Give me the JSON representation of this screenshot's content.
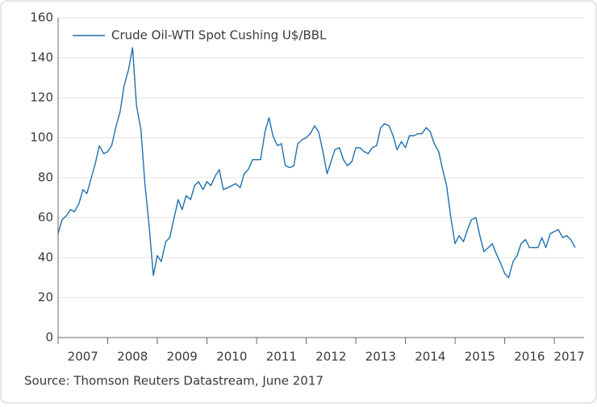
{
  "chart_data": {
    "type": "line",
    "source": "Source: Thomson Reuters Datastream, June 2017",
    "x": [
      2007.0,
      2007.08,
      2007.17,
      2007.25,
      2007.33,
      2007.42,
      2007.5,
      2007.58,
      2007.67,
      2007.75,
      2007.83,
      2007.92,
      2008.0,
      2008.08,
      2008.17,
      2008.25,
      2008.33,
      2008.42,
      2008.5,
      2008.58,
      2008.67,
      2008.75,
      2008.83,
      2008.92,
      2009.0,
      2009.08,
      2009.17,
      2009.25,
      2009.33,
      2009.42,
      2009.5,
      2009.58,
      2009.67,
      2009.75,
      2009.83,
      2009.92,
      2010.0,
      2010.08,
      2010.17,
      2010.25,
      2010.33,
      2010.42,
      2010.5,
      2010.58,
      2010.67,
      2010.75,
      2010.83,
      2010.92,
      2011.0,
      2011.08,
      2011.17,
      2011.25,
      2011.33,
      2011.42,
      2011.5,
      2011.58,
      2011.67,
      2011.75,
      2011.83,
      2011.92,
      2012.0,
      2012.08,
      2012.17,
      2012.25,
      2012.33,
      2012.42,
      2012.5,
      2012.58,
      2012.67,
      2012.75,
      2012.83,
      2012.92,
      2013.0,
      2013.08,
      2013.17,
      2013.25,
      2013.33,
      2013.42,
      2013.5,
      2013.58,
      2013.67,
      2013.75,
      2013.83,
      2013.92,
      2014.0,
      2014.08,
      2014.17,
      2014.25,
      2014.33,
      2014.42,
      2014.5,
      2014.58,
      2014.67,
      2014.75,
      2014.83,
      2014.92,
      2015.0,
      2015.08,
      2015.17,
      2015.25,
      2015.33,
      2015.42,
      2015.5,
      2015.58,
      2015.67,
      2015.75,
      2015.83,
      2015.92,
      2016.0,
      2016.08,
      2016.17,
      2016.25,
      2016.33,
      2016.42,
      2016.5,
      2016.58,
      2016.67,
      2016.75,
      2016.83,
      2016.92,
      2017.0,
      2017.08,
      2017.17,
      2017.25,
      2017.33,
      2017.42
    ],
    "series": [
      {
        "name": "Crude Oil-WTI Spot Cushing U$/BBL",
        "color": "#1f6fae",
        "values": [
          52,
          59,
          61,
          64,
          63,
          67,
          74,
          72,
          80,
          87,
          96,
          92,
          93,
          96,
          106,
          113,
          126,
          134,
          145,
          116,
          104,
          77,
          57,
          31,
          41,
          38,
          48,
          50,
          59,
          69,
          64,
          71,
          69,
          76,
          78,
          74,
          78,
          76,
          81,
          84,
          74,
          75,
          76,
          77,
          75,
          82,
          84,
          89,
          89,
          89,
          103,
          110,
          101,
          96,
          97,
          86,
          85,
          86,
          97,
          99,
          100,
          102,
          106,
          103,
          94,
          82,
          88,
          94,
          95,
          89,
          86,
          88,
          95,
          95,
          93,
          92,
          95,
          96,
          105,
          107,
          106,
          101,
          94,
          98,
          95,
          101,
          101,
          102,
          102,
          105,
          103,
          97,
          93,
          84,
          76,
          59,
          47,
          51,
          48,
          54,
          59,
          60,
          51,
          43,
          45,
          47,
          42,
          37,
          32,
          30,
          38,
          41,
          47,
          49,
          45,
          45,
          45,
          50,
          45,
          52,
          53,
          54,
          50,
          51,
          49,
          45
        ]
      }
    ],
    "xlim": [
      2007,
      2017.6
    ],
    "xticks": [
      {
        "value": 2007.5,
        "label": "2007"
      },
      {
        "value": 2008.5,
        "label": "2008"
      },
      {
        "value": 2009.5,
        "label": "2009"
      },
      {
        "value": 2010.5,
        "label": "2010"
      },
      {
        "value": 2011.5,
        "label": "2011"
      },
      {
        "value": 2012.5,
        "label": "2012"
      },
      {
        "value": 2013.5,
        "label": "2013"
      },
      {
        "value": 2014.5,
        "label": "2014"
      },
      {
        "value": 2015.5,
        "label": "2015"
      },
      {
        "value": 2016.5,
        "label": "2016"
      },
      {
        "value": 2017.3,
        "label": "2017"
      }
    ],
    "ylim": [
      0,
      160
    ],
    "yticks": [
      0,
      20,
      40,
      60,
      80,
      100,
      120,
      140,
      160
    ],
    "grid": true
  }
}
